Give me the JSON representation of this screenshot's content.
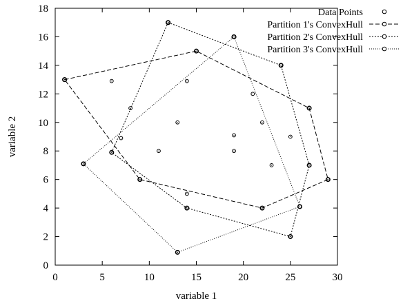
{
  "chart_data": {
    "type": "scatter",
    "xlabel": "variable 1",
    "ylabel": "variable 2",
    "xlim": [
      0,
      30
    ],
    "ylim": [
      0,
      18
    ],
    "xticks": [
      0,
      5,
      10,
      15,
      20,
      25,
      30
    ],
    "yticks": [
      0,
      2,
      4,
      6,
      8,
      10,
      12,
      14,
      16,
      18
    ],
    "grid": false,
    "legend_position": "top-right",
    "series": [
      {
        "name": "Data Points",
        "kind": "points",
        "points": [
          [
            1,
            13
          ],
          [
            3,
            7.1
          ],
          [
            6,
            12.9
          ],
          [
            6,
            7.9
          ],
          [
            7,
            8.9
          ],
          [
            8,
            11
          ],
          [
            9,
            6
          ],
          [
            11,
            8
          ],
          [
            12,
            17
          ],
          [
            13,
            10
          ],
          [
            13,
            0.9
          ],
          [
            14,
            12.9
          ],
          [
            14,
            5
          ],
          [
            14,
            4
          ],
          [
            15,
            15
          ],
          [
            19,
            16
          ],
          [
            19,
            9.1
          ],
          [
            19,
            8
          ],
          [
            21,
            12
          ],
          [
            22,
            10
          ],
          [
            22,
            4
          ],
          [
            23,
            7
          ],
          [
            24,
            14
          ],
          [
            25,
            9
          ],
          [
            25,
            2
          ],
          [
            26,
            4.1
          ],
          [
            27,
            11
          ],
          [
            27,
            7
          ],
          [
            29,
            6
          ]
        ]
      },
      {
        "name": "Partition 1's ConvexHull",
        "kind": "hull",
        "dash": "6,3",
        "points": [
          [
            1,
            13
          ],
          [
            15,
            15
          ],
          [
            27,
            11
          ],
          [
            29,
            6
          ],
          [
            22,
            4
          ],
          [
            9,
            6
          ],
          [
            1,
            13
          ]
        ]
      },
      {
        "name": "Partition 2's ConvexHull",
        "kind": "hull",
        "dash": "2,2",
        "points": [
          [
            12,
            17
          ],
          [
            24,
            14
          ],
          [
            27,
            7
          ],
          [
            25,
            2
          ],
          [
            14,
            4
          ],
          [
            6,
            7.9
          ],
          [
            12,
            17
          ]
        ]
      },
      {
        "name": "Partition 3's ConvexHull",
        "kind": "hull",
        "dash": "1,2",
        "points": [
          [
            19,
            16
          ],
          [
            26,
            4.1
          ],
          [
            13,
            0.9
          ],
          [
            3,
            7.1
          ],
          [
            19,
            16
          ]
        ]
      }
    ]
  }
}
